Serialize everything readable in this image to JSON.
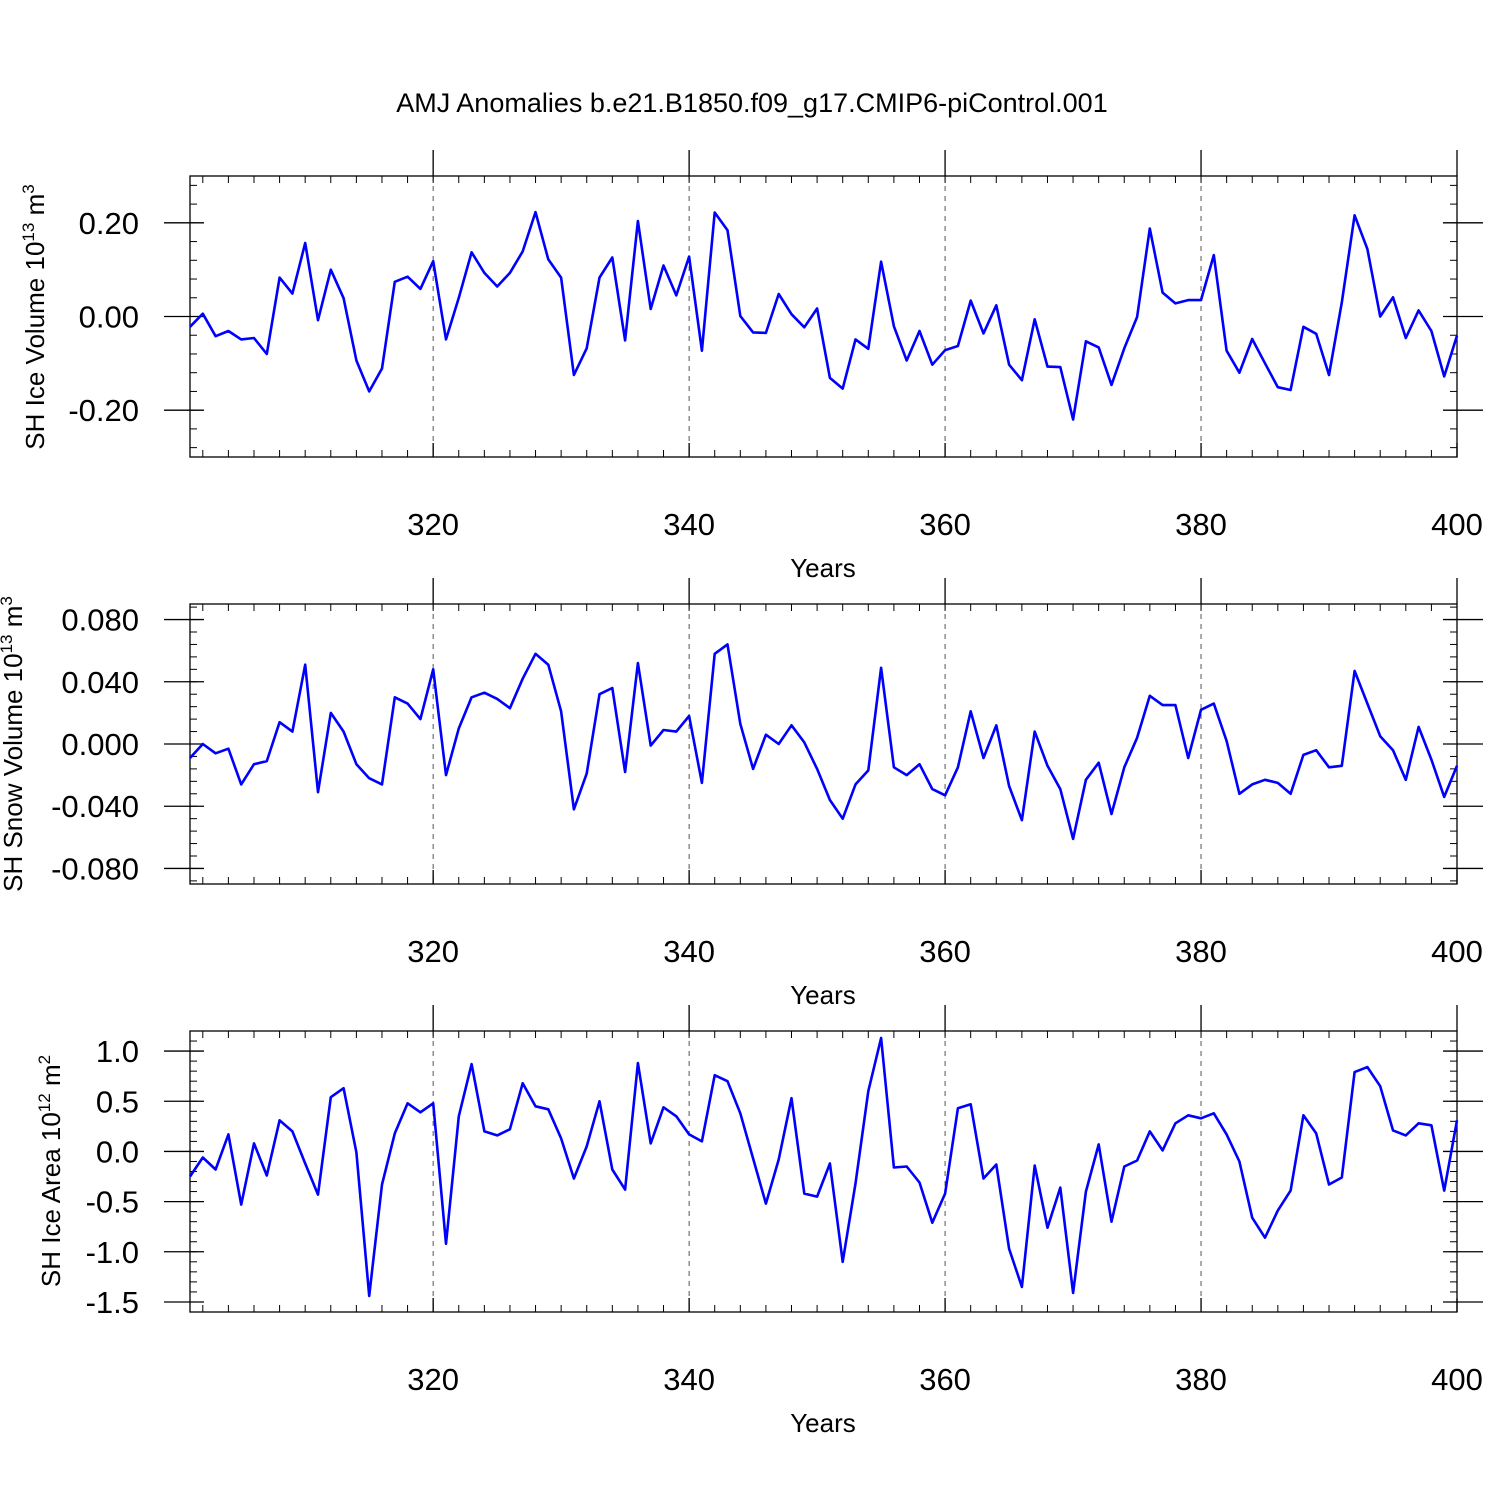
{
  "title": "AMJ Anomalies b.e21.B1850.f09_g17.CMIP6-piControl.001",
  "colors": {
    "line": "#0000ff",
    "axis": "#000000",
    "grid": "#555555"
  },
  "chart_data": [
    {
      "type": "line",
      "ylabel": {
        "main": "SH Ice Volume 10",
        "sup": "13",
        "unit": " m",
        "unit_sup": "3"
      },
      "xlabel": "Years",
      "xlim": [
        301,
        400
      ],
      "ylim": [
        -0.3,
        0.3
      ],
      "xticks": [
        320,
        340,
        360,
        380,
        400
      ],
      "yticks": [
        0.2,
        0.0,
        -0.2
      ],
      "ytick_labels": [
        "0.20",
        "0.00",
        "-0.20"
      ],
      "grid": "vertical-dashed",
      "series": [
        {
          "x_start": 301,
          "values": [
            -0.022,
            0.006,
            -0.042,
            -0.031,
            -0.049,
            -0.046,
            -0.08,
            0.083,
            0.049,
            0.157,
            -0.008,
            0.1,
            0.039,
            -0.094,
            -0.16,
            -0.111,
            0.074,
            0.085,
            0.059,
            0.118,
            -0.049,
            0.04,
            0.137,
            0.093,
            0.064,
            0.093,
            0.139,
            0.223,
            0.122,
            0.083,
            -0.125,
            -0.068,
            0.083,
            0.126,
            -0.051,
            0.204,
            0.016,
            0.109,
            0.045,
            0.128,
            -0.073,
            0.222,
            0.184,
            0.001,
            -0.034,
            -0.035,
            0.048,
            0.005,
            -0.023,
            0.017,
            -0.131,
            -0.154,
            -0.049,
            -0.069,
            0.117,
            -0.021,
            -0.094,
            -0.031,
            -0.103,
            -0.072,
            -0.063,
            0.034,
            -0.036,
            0.024,
            -0.103,
            -0.136,
            -0.006,
            -0.107,
            -0.108,
            -0.22,
            -0.053,
            -0.066,
            -0.146,
            -0.068,
            -0.001,
            0.188,
            0.051,
            0.028,
            0.035,
            0.035,
            0.131,
            -0.073,
            -0.12,
            -0.048,
            -0.1,
            -0.151,
            -0.157,
            -0.022,
            -0.037,
            -0.125,
            0.03,
            0.216,
            0.144,
            0.0,
            0.041,
            -0.046,
            0.013,
            -0.031,
            -0.128,
            -0.041
          ]
        }
      ]
    },
    {
      "type": "line",
      "ylabel": {
        "main": "SH Snow Volume 10",
        "sup": "13",
        "unit": " m",
        "unit_sup": "3"
      },
      "xlabel": "Years",
      "xlim": [
        301,
        400
      ],
      "ylim": [
        -0.09,
        0.09
      ],
      "xticks": [
        320,
        340,
        360,
        380,
        400
      ],
      "yticks": [
        0.08,
        0.04,
        0.0,
        -0.04,
        -0.08
      ],
      "ytick_labels": [
        "0.080",
        "0.040",
        "0.000",
        "-0.040",
        "-0.080"
      ],
      "grid": "vertical-dashed",
      "series": [
        {
          "x_start": 301,
          "values": [
            -0.009,
            0.0,
            -0.006,
            -0.003,
            -0.026,
            -0.013,
            -0.011,
            0.014,
            0.008,
            0.051,
            -0.031,
            0.02,
            0.008,
            -0.013,
            -0.022,
            -0.026,
            0.03,
            0.026,
            0.016,
            0.048,
            -0.02,
            0.01,
            0.03,
            0.033,
            0.029,
            0.023,
            0.042,
            0.058,
            0.051,
            0.021,
            -0.042,
            -0.019,
            0.032,
            0.036,
            -0.018,
            0.052,
            -0.001,
            0.009,
            0.008,
            0.018,
            -0.025,
            0.058,
            0.064,
            0.013,
            -0.016,
            0.006,
            0.0,
            0.012,
            0.001,
            -0.016,
            -0.036,
            -0.048,
            -0.026,
            -0.017,
            0.049,
            -0.015,
            -0.02,
            -0.013,
            -0.029,
            -0.033,
            -0.015,
            0.021,
            -0.009,
            0.012,
            -0.027,
            -0.049,
            0.008,
            -0.014,
            -0.029,
            -0.061,
            -0.023,
            -0.012,
            -0.045,
            -0.015,
            0.004,
            0.031,
            0.025,
            0.025,
            -0.009,
            0.022,
            0.026,
            0.002,
            -0.032,
            -0.026,
            -0.023,
            -0.025,
            -0.032,
            -0.007,
            -0.004,
            -0.015,
            -0.014,
            0.047,
            0.026,
            0.005,
            -0.004,
            -0.023,
            0.011,
            -0.01,
            -0.034,
            -0.014
          ]
        }
      ]
    },
    {
      "type": "line",
      "ylabel": {
        "main": "SH Ice Area 10",
        "sup": "12",
        "unit": " m",
        "unit_sup": "2"
      },
      "xlabel": "Years",
      "xlim": [
        301,
        400
      ],
      "ylim": [
        -1.6,
        1.2
      ],
      "xticks": [
        320,
        340,
        360,
        380,
        400
      ],
      "yticks": [
        1.0,
        0.5,
        0.0,
        -0.5,
        -1.0,
        -1.5
      ],
      "ytick_labels": [
        "1.0",
        "0.5",
        "0.0",
        "-0.5",
        "-1.0",
        "-1.5"
      ],
      "grid": "vertical-dashed",
      "series": [
        {
          "x_start": 301,
          "values": [
            -0.25,
            -0.06,
            -0.18,
            0.17,
            -0.53,
            0.08,
            -0.24,
            0.31,
            0.2,
            -0.12,
            -0.43,
            0.54,
            0.63,
            -0.01,
            -1.44,
            -0.33,
            0.18,
            0.48,
            0.39,
            0.48,
            -0.92,
            0.35,
            0.87,
            0.2,
            0.16,
            0.22,
            0.68,
            0.45,
            0.42,
            0.13,
            -0.27,
            0.05,
            0.5,
            -0.18,
            -0.38,
            0.88,
            0.08,
            0.44,
            0.35,
            0.17,
            0.1,
            0.76,
            0.7,
            0.38,
            -0.07,
            -0.52,
            -0.08,
            0.53,
            -0.42,
            -0.45,
            -0.12,
            -1.1,
            -0.32,
            0.6,
            1.13,
            -0.16,
            -0.15,
            -0.31,
            -0.71,
            -0.42,
            0.43,
            0.47,
            -0.27,
            -0.13,
            -0.97,
            -1.35,
            -0.14,
            -0.76,
            -0.36,
            -1.41,
            -0.4,
            0.07,
            -0.7,
            -0.15,
            -0.09,
            0.2,
            0.01,
            0.28,
            0.36,
            0.33,
            0.38,
            0.17,
            -0.1,
            -0.66,
            -0.86,
            -0.59,
            -0.39,
            0.36,
            0.18,
            -0.33,
            -0.26,
            0.79,
            0.84,
            0.65,
            0.21,
            0.16,
            0.28,
            0.26,
            -0.39,
            0.31
          ]
        }
      ]
    }
  ]
}
